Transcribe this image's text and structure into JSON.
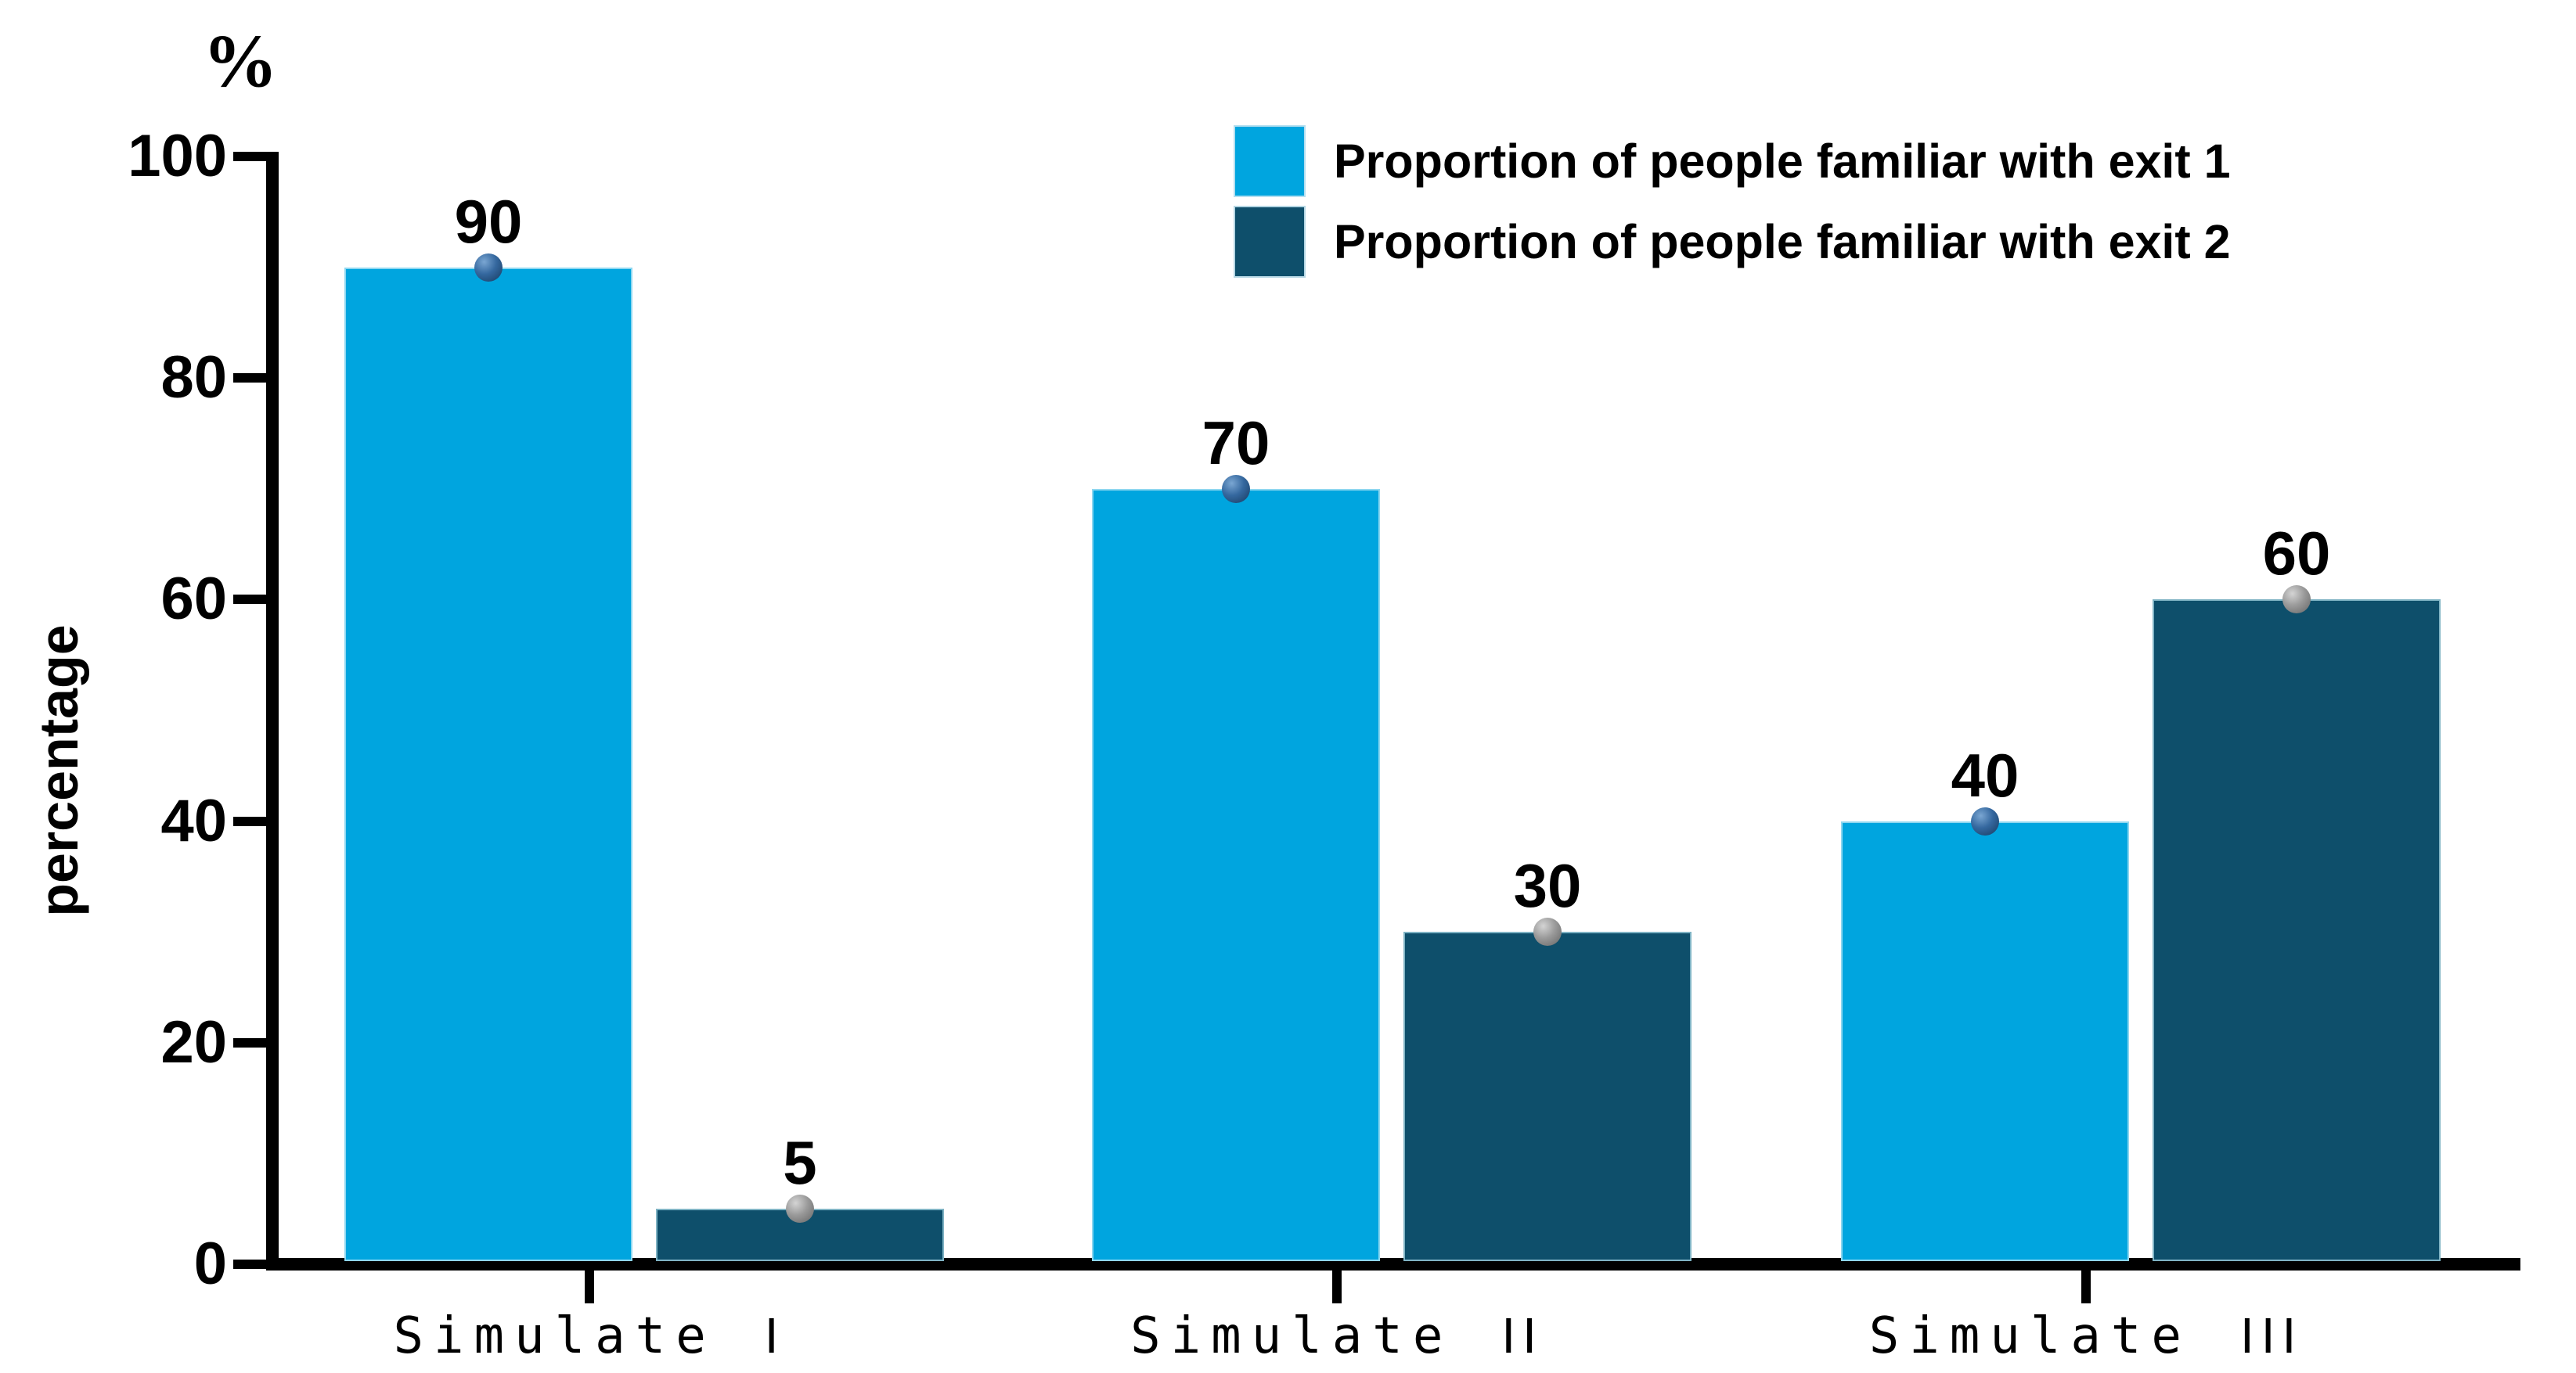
{
  "chart_data": {
    "type": "bar",
    "title": "",
    "categories": [
      "Simulate I",
      "Simulate II",
      "Simulate III"
    ],
    "series": [
      {
        "name": "Proportion of people familiar with exit 1",
        "color": "#00A5DF",
        "marker": "sphere",
        "marker_color": "#2E5F97",
        "values": [
          90,
          70,
          40
        ]
      },
      {
        "name": "Proportion of people familiar with exit 2",
        "color": "#0E4F6B",
        "marker": "sphere",
        "marker_color": "#9B9B9B",
        "values": [
          5,
          30,
          60
        ]
      }
    ],
    "data_labels": true,
    "xlabel": "",
    "ylabel": "percentage",
    "y_unit": "%",
    "ylim": [
      0,
      100
    ],
    "yticks": [
      0,
      20,
      40,
      60,
      80,
      100
    ],
    "grid": false,
    "legend_position": "top-right",
    "background": "#FFFFFF",
    "axis_color": "#000000"
  },
  "axes": {
    "y_unit_label": "%",
    "y_axis_title": "percentage",
    "y_tick_labels": [
      "0",
      "20",
      "40",
      "60",
      "80",
      "100"
    ],
    "x_categories": [
      {
        "text": "Simulate",
        "numeral": "I"
      },
      {
        "text": "Simulate",
        "numeral": "II"
      },
      {
        "text": "Simulate",
        "numeral": "III"
      }
    ]
  },
  "legend": {
    "items": [
      {
        "label": "Proportion of people familiar with exit 1",
        "color": "#00A5DF"
      },
      {
        "label": "Proportion of people familiar with exit 2",
        "color": "#0E4F6B"
      }
    ]
  }
}
